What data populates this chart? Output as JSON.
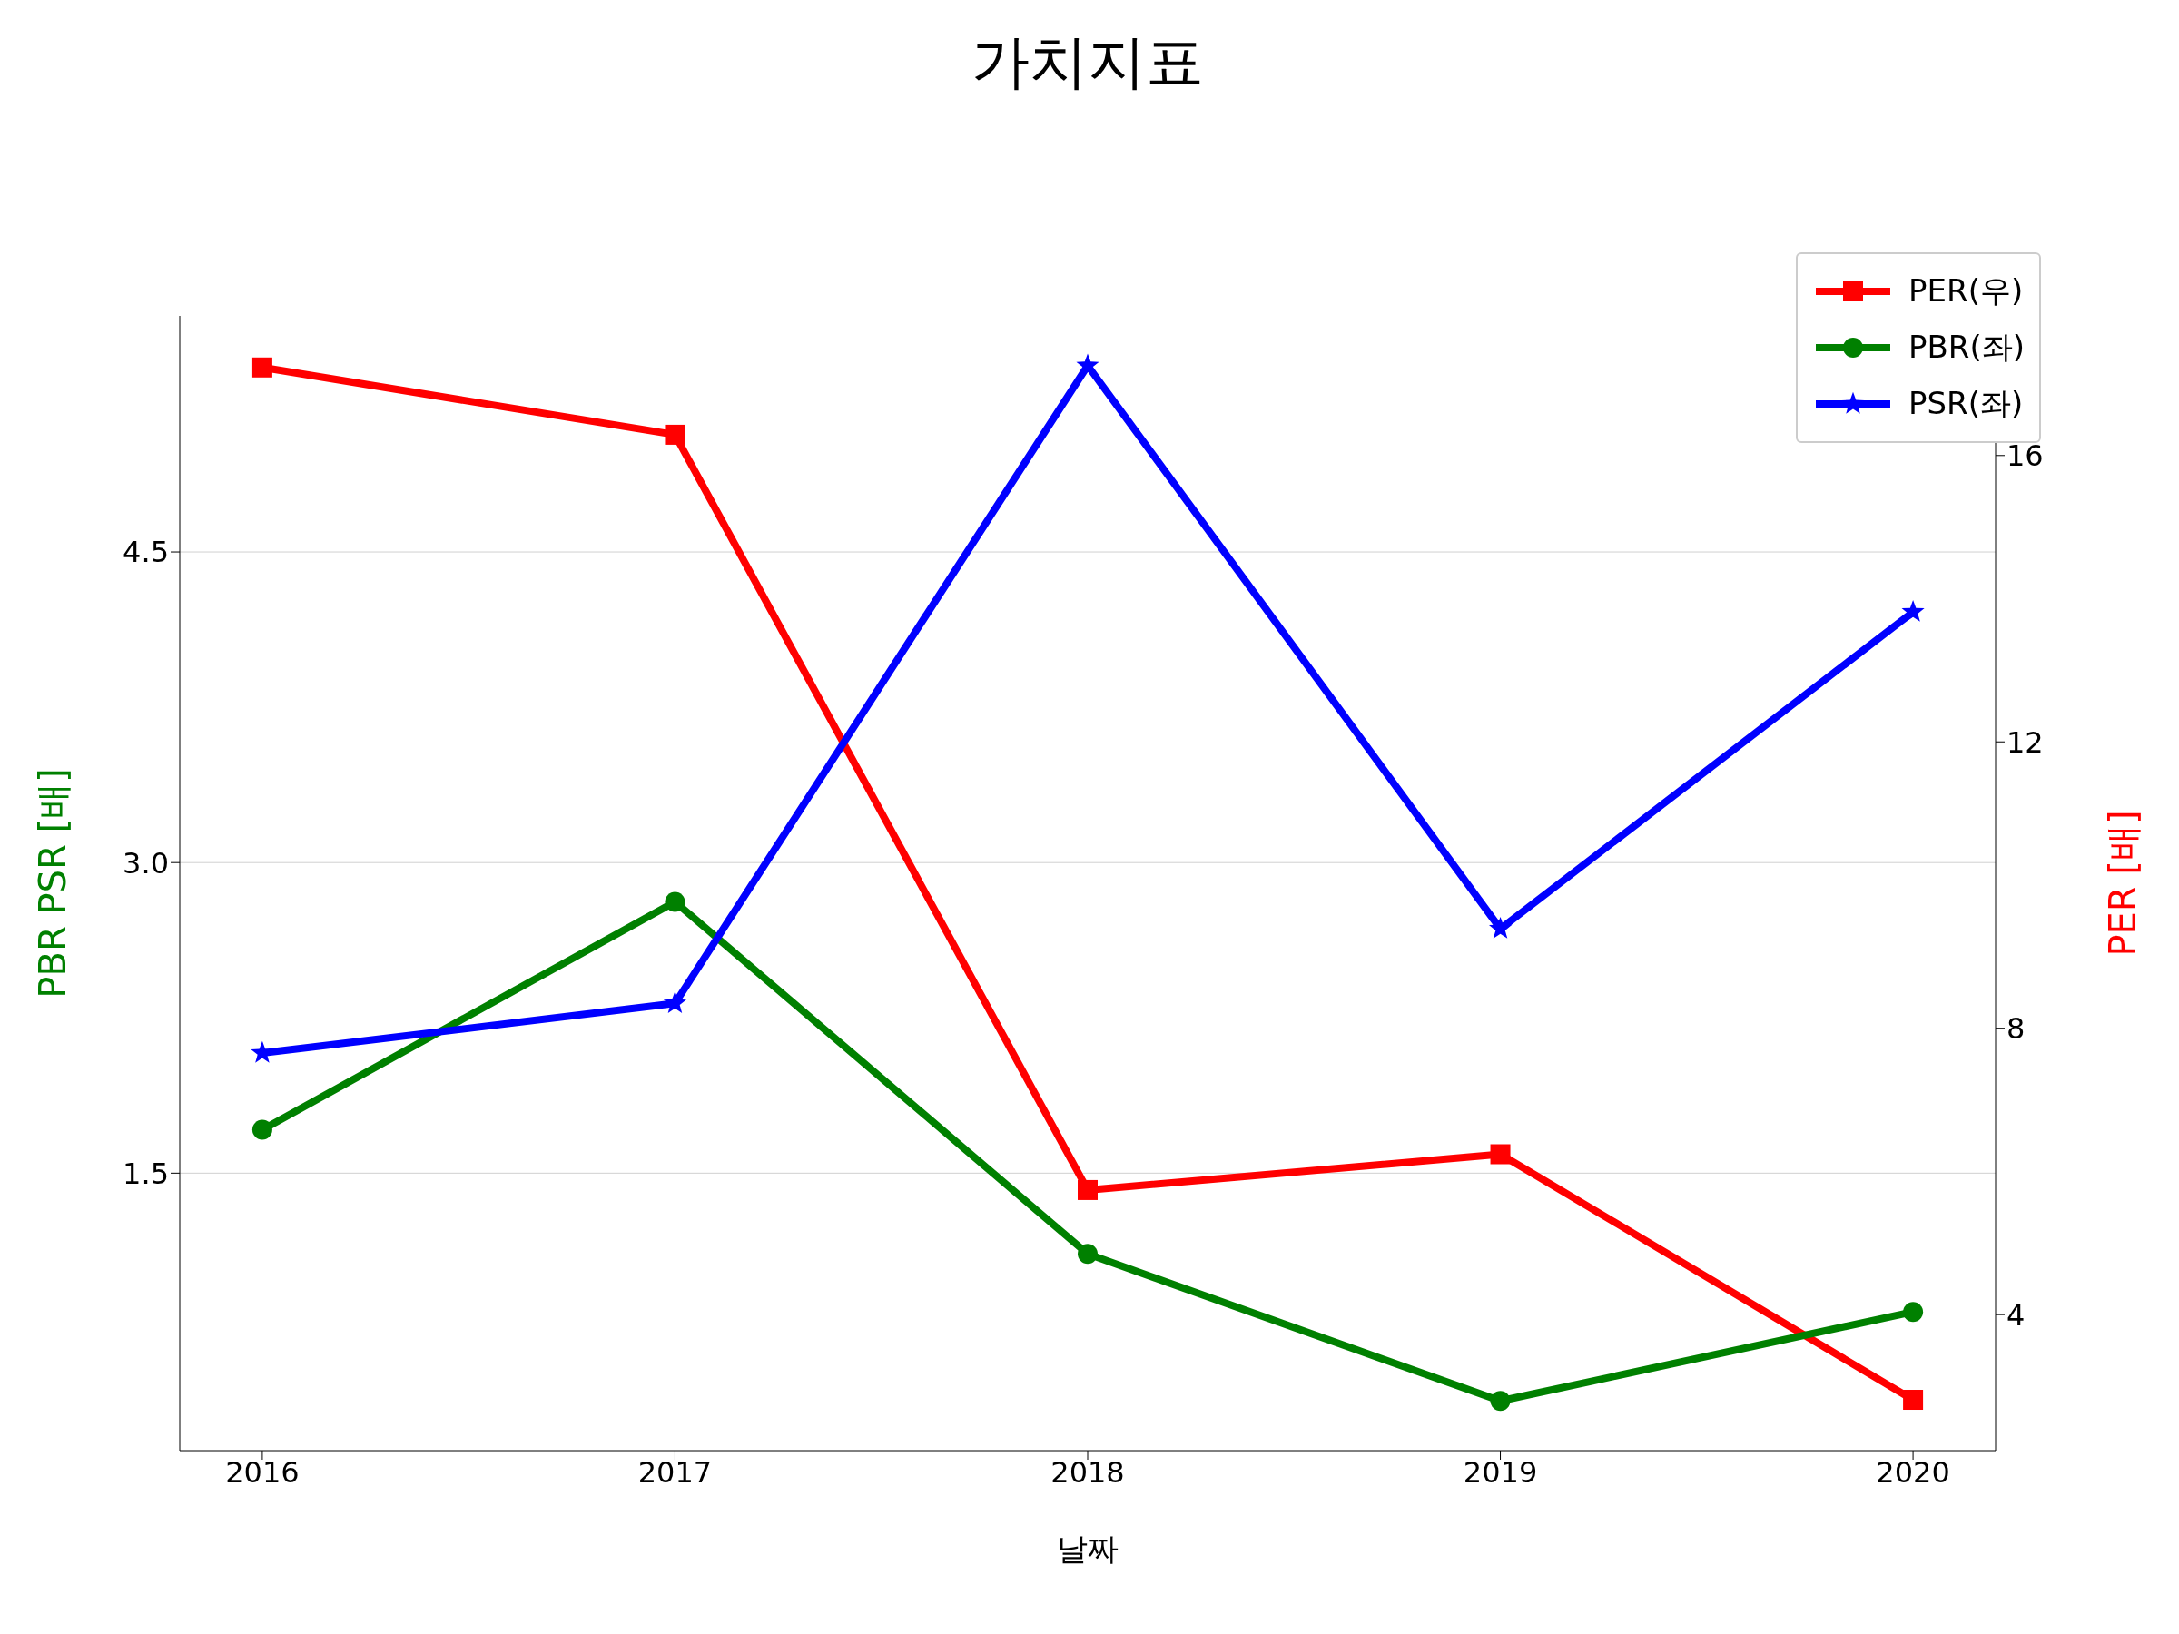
{
  "chart_data": {
    "type": "line",
    "title": "가치지표",
    "xlabel": "날짜",
    "ylabel": "PBR PSR [배]",
    "y2label": "PER [배]",
    "x": [
      2016,
      2017,
      2018,
      2019,
      2020
    ],
    "xlim": [
      2015.8,
      2020.2
    ],
    "xticks": [
      2016,
      2017,
      2018,
      2019,
      2020
    ],
    "ylim": [
      0.16,
      5.64
    ],
    "yticks": [
      1.5,
      {
        "value": 3,
        "label": "3.0"
      },
      4.5
    ],
    "y2lim": [
      2.1,
      17.95
    ],
    "y2ticks": [
      4,
      8,
      12,
      16
    ],
    "series": [
      {
        "name": "PER(우)",
        "color": "#ff0000",
        "axis": "y2",
        "marker": "square",
        "values": [
          17.23,
          16.29,
          5.74,
          6.24,
          2.81
        ]
      },
      {
        "name": "PBR(좌)",
        "color": "#008000",
        "marker": "circle",
        "values": [
          1.71,
          2.81,
          1.11,
          0.4,
          0.83
        ]
      },
      {
        "name": "PSR(좌)",
        "color": "#0000ff",
        "marker": "star",
        "values": [
          2.08,
          2.32,
          5.4,
          2.68,
          4.21
        ]
      }
    ],
    "grid": "y",
    "legend": "top right",
    "line_style": "solid"
  }
}
